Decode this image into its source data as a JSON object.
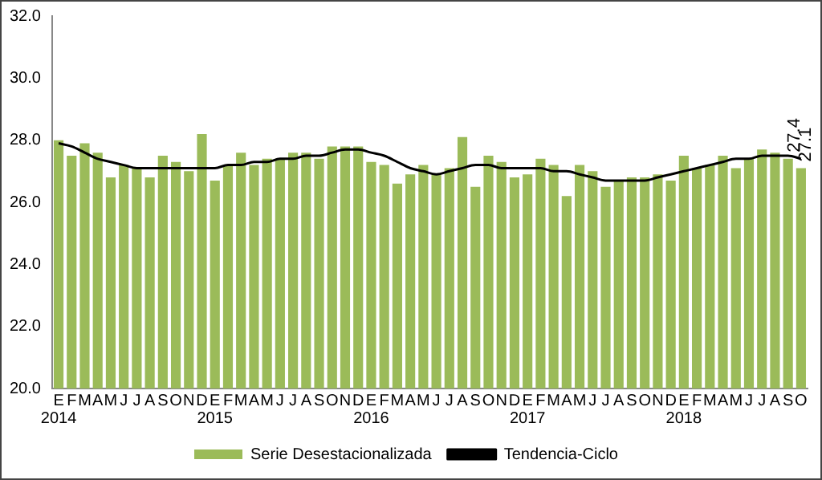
{
  "chart_data": {
    "type": "bar",
    "categories": [
      "E\n2014",
      "F",
      "M",
      "A",
      "M",
      "J",
      "J",
      "A",
      "S",
      "O",
      "N",
      "D",
      "E\n2015",
      "F",
      "M",
      "A",
      "M",
      "J",
      "J",
      "A",
      "S",
      "O",
      "N",
      "D",
      "E\n2016",
      "F",
      "M",
      "A",
      "M",
      "J",
      "J",
      "A",
      "S",
      "O",
      "N",
      "D",
      "E\n2017",
      "F",
      "M",
      "A",
      "M",
      "J",
      "J",
      "A",
      "S",
      "O",
      "N",
      "D",
      "E\n2018",
      "F",
      "M",
      "A",
      "M",
      "J",
      "J",
      "A",
      "S",
      "O"
    ],
    "series": [
      {
        "name": "Serie Desestacionalizada",
        "color": "#9bbb59",
        "values": [
          28.0,
          27.5,
          27.9,
          27.6,
          26.8,
          27.2,
          27.1,
          26.8,
          27.5,
          27.3,
          27.0,
          28.2,
          26.7,
          27.2,
          27.6,
          27.2,
          27.4,
          27.4,
          27.6,
          27.6,
          27.4,
          27.8,
          27.8,
          27.8,
          27.3,
          27.2,
          26.6,
          26.9,
          27.2,
          26.9,
          27.1,
          28.1,
          26.5,
          27.5,
          27.3,
          26.8,
          26.9,
          27.4,
          27.2,
          26.2,
          27.2,
          27.0,
          26.5,
          26.7,
          26.8,
          26.8,
          26.9,
          26.7,
          27.5,
          27.1,
          27.2,
          27.5,
          27.1,
          27.4,
          27.7,
          27.6,
          27.4,
          27.1
        ],
        "value_labels": [
          null,
          null,
          null,
          null,
          null,
          null,
          null,
          null,
          null,
          null,
          null,
          null,
          null,
          null,
          null,
          null,
          null,
          null,
          null,
          null,
          null,
          null,
          null,
          null,
          null,
          null,
          null,
          null,
          null,
          null,
          null,
          null,
          null,
          null,
          null,
          null,
          null,
          null,
          null,
          null,
          null,
          null,
          null,
          null,
          null,
          null,
          null,
          null,
          null,
          null,
          null,
          null,
          null,
          null,
          null,
          null,
          null,
          "27.1"
        ]
      },
      {
        "name": "Tendencia-Ciclo",
        "type": "line",
        "color": "#000000",
        "values": [
          27.9,
          27.8,
          27.6,
          27.4,
          27.3,
          27.2,
          27.1,
          27.1,
          27.1,
          27.1,
          27.1,
          27.1,
          27.1,
          27.2,
          27.2,
          27.3,
          27.3,
          27.4,
          27.4,
          27.5,
          27.5,
          27.6,
          27.7,
          27.7,
          27.6,
          27.5,
          27.3,
          27.1,
          27.0,
          26.9,
          27.0,
          27.1,
          27.2,
          27.2,
          27.1,
          27.1,
          27.1,
          27.1,
          27.0,
          27.0,
          26.9,
          26.8,
          26.7,
          26.7,
          26.7,
          26.7,
          26.8,
          26.9,
          27.0,
          27.1,
          27.2,
          27.3,
          27.4,
          27.4,
          27.5,
          27.5,
          27.5,
          27.4
        ],
        "value_labels": [
          null,
          null,
          null,
          null,
          null,
          null,
          null,
          null,
          null,
          null,
          null,
          null,
          null,
          null,
          null,
          null,
          null,
          null,
          null,
          null,
          null,
          null,
          null,
          null,
          null,
          null,
          null,
          null,
          null,
          null,
          null,
          null,
          null,
          null,
          null,
          null,
          null,
          null,
          null,
          null,
          null,
          null,
          null,
          null,
          null,
          null,
          null,
          null,
          null,
          null,
          null,
          null,
          null,
          null,
          null,
          null,
          null,
          "27.4"
        ]
      }
    ],
    "ylim": [
      20.0,
      32.0
    ],
    "yticks": [
      {
        "value": 20,
        "label": "20.0"
      },
      {
        "value": 22,
        "label": "22.0"
      },
      {
        "value": 24,
        "label": "24.0"
      },
      {
        "value": 26,
        "label": "26.0"
      },
      {
        "value": 28,
        "label": "28.0"
      },
      {
        "value": 30,
        "label": "30.0"
      },
      {
        "value": 32,
        "label": "32.0"
      }
    ],
    "grid": false,
    "legend": "bottom",
    "marker": "none",
    "line_style": "solid"
  }
}
